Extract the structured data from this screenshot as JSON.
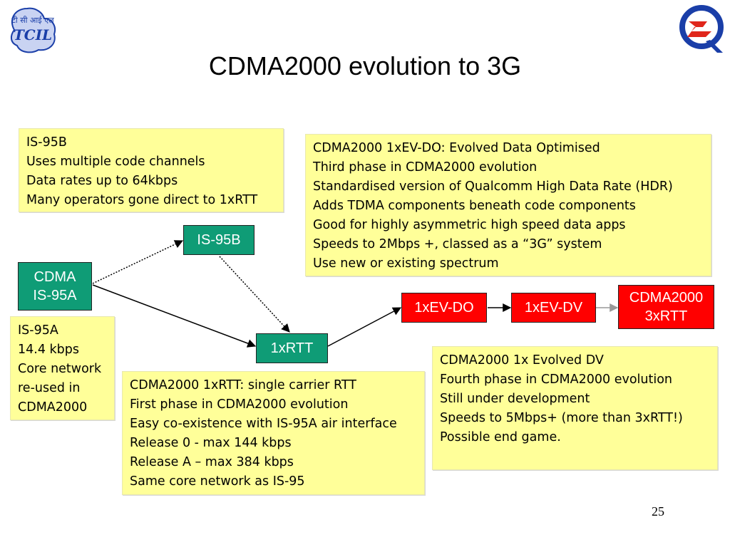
{
  "title": "CDMA2000 evolution to 3G",
  "page_number": "25",
  "logos": {
    "left": "tcil-logo",
    "right": "q-logo"
  },
  "nodes": {
    "cdma_is95a": [
      "CDMA",
      "IS-95A"
    ],
    "is95b": "IS-95B",
    "onexrtt": "1xRTT",
    "onexevdo": "1xEV-DO",
    "onexevdv": "1xEV-DV",
    "cdma2000_3xrtt": [
      "CDMA2000",
      "3xRTT"
    ]
  },
  "notes": {
    "is95b": [
      "IS-95B",
      "Uses multiple code channels",
      "Data rates up to 64kbps",
      "Many operators gone direct to 1xRTT"
    ],
    "evdo": [
      "CDMA2000 1xEV-DO: Evolved Data Optimised",
      "Third phase in CDMA2000 evolution",
      "Standardised version of Qualcomm High Data Rate (HDR)",
      "Adds TDMA components beneath code components",
      "Good for highly asymmetric high speed data apps",
      "Speeds to 2Mbps +, classed as a “3G” system",
      "Use new or existing spectrum"
    ],
    "is95a": [
      "IS-95A",
      "14.4 kbps",
      "Core network",
      "re-used in",
      "CDMA2000"
    ],
    "onexrtt": [
      "CDMA2000 1xRTT: single carrier RTT",
      "First phase in CDMA2000 evolution",
      "Easy co-existence with IS-95A air interface",
      "Release 0 - max 144 kbps",
      "Release A – max 384 kbps",
      "Same core network as IS-95"
    ],
    "evdv": [
      "CDMA2000 1x Evolved DV",
      "Fourth phase in CDMA2000 evolution",
      "Still under development",
      "Speeds to 5Mbps+ (more than 3xRTT!)",
      "Possible end game."
    ]
  },
  "colors": {
    "note_bg": "#ffff99",
    "node_green": "#0f9c76",
    "node_red": "#ff0000",
    "logo_blue": "#1a3ea8",
    "logo_red": "#e0261b"
  }
}
